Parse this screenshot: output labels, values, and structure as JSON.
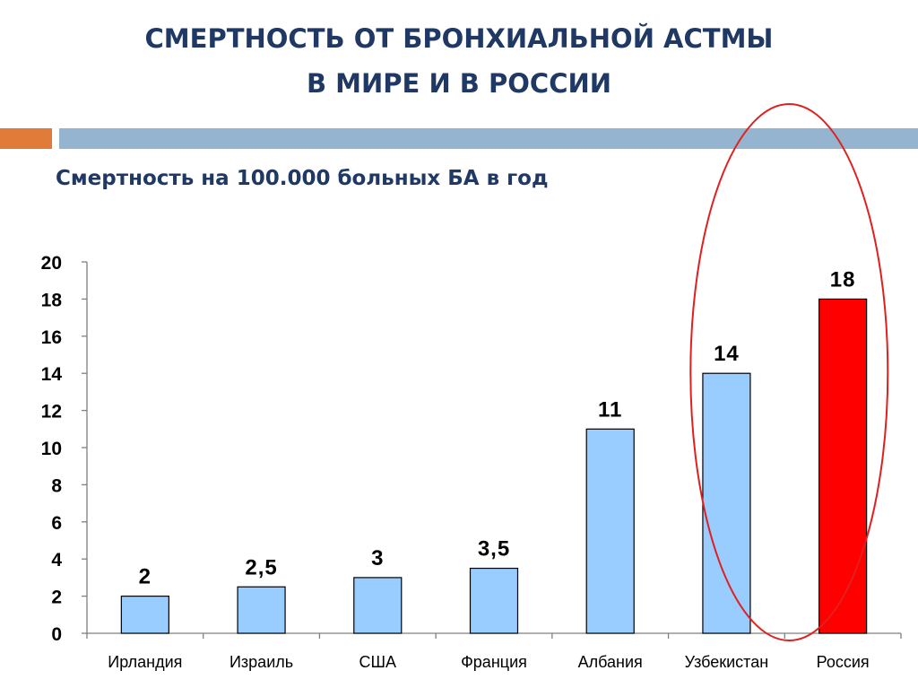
{
  "slide": {
    "title_line1": "СМЕРТНОСТЬ ОТ БРОНХИАЛЬНОЙ АСТМЫ",
    "title_line2": "В МИРЕ И В РОССИИ",
    "subtitle": "Смертность на 100.000 больных БА в год",
    "colors": {
      "title": "#1f3864",
      "band_orange": "#e07b39",
      "band_blue": "#94b4cf",
      "bar_default": "#99ccff",
      "bar_highlight": "#ff0000",
      "ellipse": "#e02020"
    }
  },
  "chart_data": {
    "type": "bar",
    "categories": [
      "Ирландия",
      "Израиль",
      "США",
      "Франция",
      "Албания",
      "Узбекистан",
      "Россия"
    ],
    "values": [
      2,
      2.5,
      3,
      3.5,
      11,
      14,
      18
    ],
    "data_labels": [
      "2",
      "2,5",
      "3",
      "3,5",
      "11",
      "14",
      "18"
    ],
    "highlight_category": "Россия",
    "circled_categories": [
      "Узбекистан",
      "Россия"
    ],
    "ylim": [
      0,
      20
    ],
    "yticks": [
      0,
      2,
      4,
      6,
      8,
      10,
      12,
      14,
      16,
      18,
      20
    ],
    "xlabel": "",
    "ylabel": "",
    "grid": false,
    "legend": "none"
  }
}
